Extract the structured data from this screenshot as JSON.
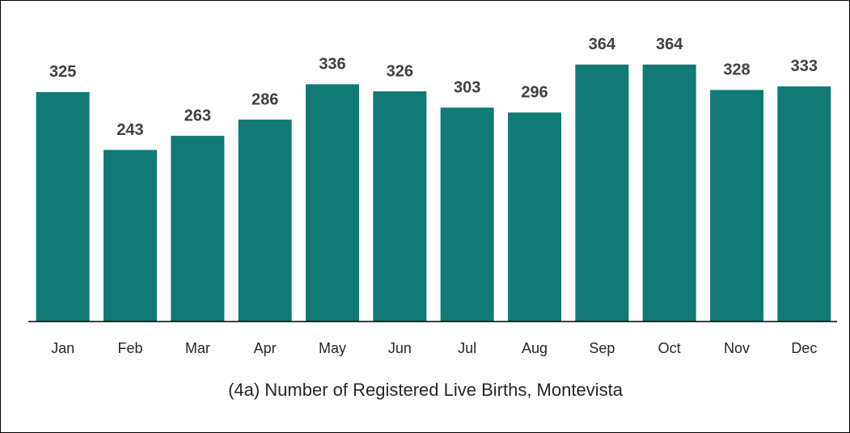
{
  "chart_data": {
    "type": "bar",
    "title": "(4a) Number of Registered Live Births, Montevista",
    "categories": [
      "Jan",
      "Feb",
      "Mar",
      "Apr",
      "May",
      "Jun",
      "Jul",
      "Aug",
      "Sep",
      "Oct",
      "Nov",
      "Dec"
    ],
    "values": [
      325,
      243,
      263,
      286,
      336,
      326,
      303,
      296,
      364,
      364,
      328,
      333
    ],
    "color": "#117a75"
  }
}
